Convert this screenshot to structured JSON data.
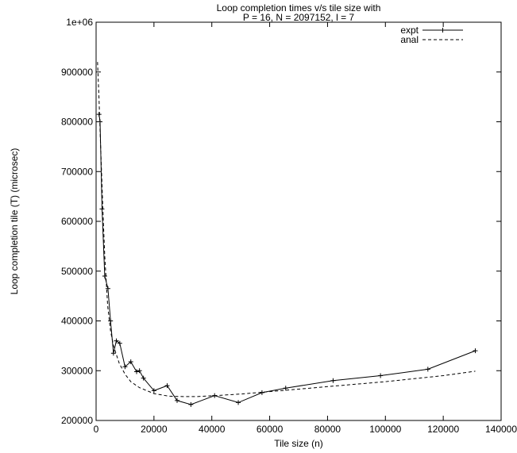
{
  "chart_data": {
    "type": "line",
    "title_lines": [
      "Loop completion times v/s tile size with",
      "P = 16, N = 2097152, l = 7"
    ],
    "xlabel": "Tile size (n)",
    "ylabel": "Loop completion tile (T) (microsec)",
    "xlim": [
      0,
      140000
    ],
    "ylim": [
      200000,
      1000000
    ],
    "xticks": [
      0,
      20000,
      40000,
      60000,
      80000,
      100000,
      120000,
      140000
    ],
    "xtick_labels": [
      "0",
      "20000",
      "40000",
      "60000",
      "80000",
      "100000",
      "120000",
      "140000"
    ],
    "yticks": [
      200000,
      300000,
      400000,
      500000,
      600000,
      700000,
      800000,
      900000,
      1000000
    ],
    "ytick_labels": [
      "200000",
      "300000",
      "400000",
      "500000",
      "600000",
      "700000",
      "800000",
      "900000",
      "1e+06"
    ],
    "grid": false,
    "legend_position": "top-right",
    "series": [
      {
        "name": "expt",
        "style": "solid",
        "markers": "plus",
        "points": [
          [
            1024,
            815000
          ],
          [
            1365,
            800000
          ],
          [
            2048,
            625000
          ],
          [
            3000,
            490000
          ],
          [
            4096,
            465000
          ],
          [
            5000,
            400000
          ],
          [
            6000,
            335000
          ],
          [
            7000,
            360000
          ],
          [
            8192,
            355000
          ],
          [
            10000,
            308000
          ],
          [
            12000,
            318000
          ],
          [
            14000,
            298000
          ],
          [
            15000,
            300000
          ],
          [
            16384,
            285000
          ],
          [
            20000,
            260000
          ],
          [
            24576,
            270000
          ],
          [
            28000,
            240000
          ],
          [
            32768,
            232000
          ],
          [
            40960,
            250000
          ],
          [
            49152,
            236000
          ],
          [
            57344,
            256000
          ],
          [
            65536,
            265000
          ],
          [
            81920,
            280000
          ],
          [
            98304,
            290000
          ],
          [
            114688,
            303000
          ],
          [
            131072,
            340000
          ]
        ]
      },
      {
        "name": "anal",
        "style": "dashed",
        "markers": "none",
        "points": [
          [
            500,
            920000
          ],
          [
            1000,
            850000
          ],
          [
            1500,
            760000
          ],
          [
            2000,
            680000
          ],
          [
            2500,
            600000
          ],
          [
            3000,
            530000
          ],
          [
            4000,
            430000
          ],
          [
            5000,
            380000
          ],
          [
            6000,
            350000
          ],
          [
            8000,
            315000
          ],
          [
            10000,
            293000
          ],
          [
            12000,
            278000
          ],
          [
            15000,
            266000
          ],
          [
            20000,
            254000
          ],
          [
            25000,
            249000
          ],
          [
            30000,
            248000
          ],
          [
            35000,
            248000
          ],
          [
            40000,
            249500
          ],
          [
            50000,
            253000
          ],
          [
            60000,
            258000
          ],
          [
            70000,
            263000
          ],
          [
            80000,
            268000
          ],
          [
            90000,
            273000
          ],
          [
            100000,
            278000
          ],
          [
            110000,
            284000
          ],
          [
            120000,
            290000
          ],
          [
            131072,
            299000
          ]
        ]
      }
    ]
  }
}
